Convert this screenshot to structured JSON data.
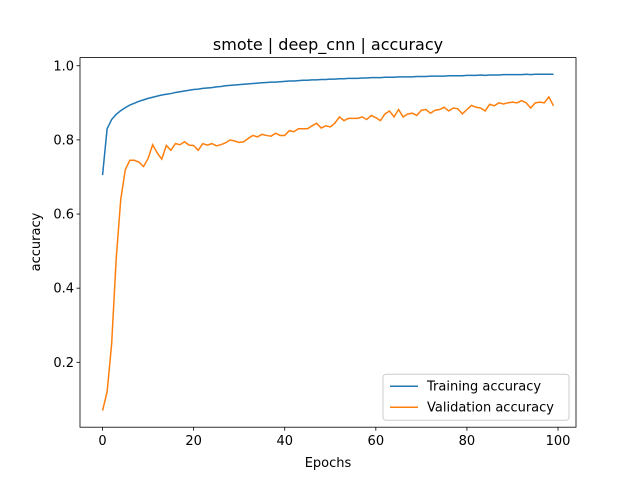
{
  "chart_data": {
    "type": "line",
    "title": "smote | deep_cnn | accuracy",
    "xlabel": "Epochs",
    "ylabel": "accuracy",
    "x": [
      0,
      1,
      2,
      3,
      4,
      5,
      6,
      7,
      8,
      9,
      10,
      11,
      12,
      13,
      14,
      15,
      16,
      17,
      18,
      19,
      20,
      21,
      22,
      23,
      24,
      25,
      26,
      27,
      28,
      29,
      30,
      31,
      32,
      33,
      34,
      35,
      36,
      37,
      38,
      39,
      40,
      41,
      42,
      43,
      44,
      45,
      46,
      47,
      48,
      49,
      50,
      51,
      52,
      53,
      54,
      55,
      56,
      57,
      58,
      59,
      60,
      61,
      62,
      63,
      64,
      65,
      66,
      67,
      68,
      69,
      70,
      71,
      72,
      73,
      74,
      75,
      76,
      77,
      78,
      79,
      80,
      81,
      82,
      83,
      84,
      85,
      86,
      87,
      88,
      89,
      90,
      91,
      92,
      93,
      94,
      95,
      96,
      97,
      98,
      99
    ],
    "series": [
      {
        "name": "Training accuracy",
        "color": "#1f77b4",
        "values": [
          0.705,
          0.83,
          0.855,
          0.869,
          0.879,
          0.887,
          0.894,
          0.899,
          0.904,
          0.908,
          0.912,
          0.915,
          0.918,
          0.921,
          0.923,
          0.925,
          0.928,
          0.93,
          0.932,
          0.934,
          0.936,
          0.937,
          0.939,
          0.94,
          0.941,
          0.943,
          0.944,
          0.946,
          0.947,
          0.948,
          0.949,
          0.95,
          0.951,
          0.952,
          0.953,
          0.954,
          0.955,
          0.956,
          0.956,
          0.957,
          0.958,
          0.959,
          0.959,
          0.96,
          0.961,
          0.961,
          0.962,
          0.962,
          0.963,
          0.963,
          0.964,
          0.964,
          0.965,
          0.965,
          0.966,
          0.966,
          0.966,
          0.967,
          0.967,
          0.968,
          0.968,
          0.968,
          0.969,
          0.969,
          0.969,
          0.97,
          0.97,
          0.97,
          0.97,
          0.971,
          0.971,
          0.971,
          0.972,
          0.972,
          0.972,
          0.972,
          0.973,
          0.973,
          0.973,
          0.973,
          0.974,
          0.974,
          0.974,
          0.975,
          0.974,
          0.975,
          0.975,
          0.975,
          0.976,
          0.976,
          0.976,
          0.976,
          0.976,
          0.977,
          0.976,
          0.977,
          0.977,
          0.977,
          0.977,
          0.977
        ]
      },
      {
        "name": "Validation accuracy",
        "color": "#ff7f0e",
        "values": [
          0.07,
          0.12,
          0.25,
          0.48,
          0.64,
          0.72,
          0.745,
          0.745,
          0.74,
          0.728,
          0.75,
          0.787,
          0.765,
          0.748,
          0.785,
          0.772,
          0.79,
          0.787,
          0.795,
          0.786,
          0.785,
          0.772,
          0.79,
          0.786,
          0.79,
          0.784,
          0.787,
          0.792,
          0.8,
          0.797,
          0.793,
          0.795,
          0.804,
          0.812,
          0.808,
          0.815,
          0.812,
          0.81,
          0.818,
          0.812,
          0.812,
          0.825,
          0.822,
          0.83,
          0.83,
          0.83,
          0.838,
          0.845,
          0.832,
          0.838,
          0.835,
          0.845,
          0.862,
          0.852,
          0.858,
          0.858,
          0.858,
          0.862,
          0.855,
          0.866,
          0.86,
          0.852,
          0.87,
          0.878,
          0.862,
          0.882,
          0.862,
          0.87,
          0.872,
          0.866,
          0.88,
          0.882,
          0.872,
          0.88,
          0.882,
          0.888,
          0.878,
          0.886,
          0.884,
          0.87,
          0.882,
          0.893,
          0.888,
          0.886,
          0.878,
          0.896,
          0.892,
          0.9,
          0.897,
          0.9,
          0.902,
          0.9,
          0.906,
          0.9,
          0.886,
          0.9,
          0.902,
          0.9,
          0.916,
          0.892
        ]
      }
    ],
    "xlim": [
      -4.95,
      103.95
    ],
    "xticks": [
      0,
      20,
      40,
      60,
      80,
      100
    ],
    "ylim": [
      0.025,
      1.022
    ],
    "yticks": [
      0.2,
      0.4,
      0.6,
      0.8,
      {
        "value": 1,
        "label": "1.0"
      }
    ],
    "legend": "lower right"
  }
}
